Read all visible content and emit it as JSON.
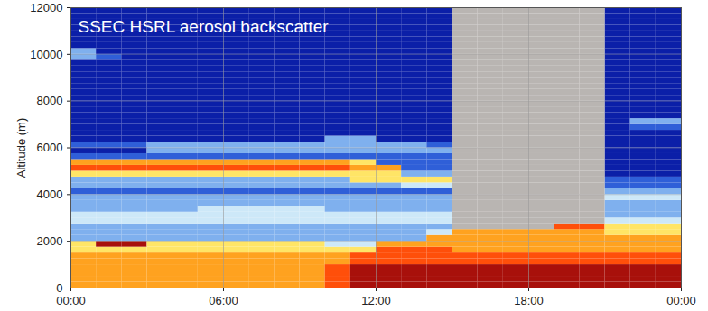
{
  "chart_data": {
    "type": "heatmap",
    "title": "SSEC HSRL aerosol backscatter",
    "y_label": "Altitude (m)",
    "xlim": [
      0,
      24
    ],
    "ylim": [
      0,
      12000
    ],
    "xticks": [
      {
        "value": 0,
        "label": "00:00"
      },
      {
        "value": 6,
        "label": "06:00"
      },
      {
        "value": 12,
        "label": "12:00"
      },
      {
        "value": 18,
        "label": "18:00"
      },
      {
        "value": 24,
        "label": "00:00"
      }
    ],
    "yticks": [
      0,
      2000,
      4000,
      6000,
      8000,
      10000,
      12000
    ],
    "grid": true,
    "value_range": [
      1,
      8
    ],
    "x_edges": [
      0,
      1,
      2,
      3,
      4,
      5,
      6,
      7,
      8,
      9,
      10,
      11,
      12,
      13,
      14,
      15,
      16,
      17,
      18,
      19,
      20,
      21,
      22,
      23,
      24
    ],
    "y_edges": [
      0,
      250,
      500,
      750,
      1000,
      1250,
      1500,
      1750,
      2000,
      2250,
      2500,
      2750,
      3000,
      3250,
      3500,
      3750,
      4000,
      4250,
      4500,
      4750,
      5000,
      5250,
      5500,
      5750,
      6000,
      6250,
      6500,
      6750,
      7000,
      7250,
      7500,
      7750,
      8000,
      8250,
      8500,
      8750,
      9000,
      9250,
      9500,
      9750,
      10000,
      10250,
      10500,
      10750,
      11000,
      11250,
      11500,
      11750,
      12000
    ],
    "cells": [
      [
        6,
        6,
        6,
        6,
        6,
        6,
        6,
        6,
        6,
        6,
        7,
        8,
        8,
        8,
        8,
        8,
        8,
        8,
        8,
        8,
        8,
        8,
        8,
        8
      ],
      [
        6,
        6,
        6,
        6,
        6,
        6,
        6,
        6,
        6,
        6,
        7,
        8,
        8,
        8,
        8,
        8,
        8,
        8,
        8,
        8,
        8,
        8,
        8,
        8
      ],
      [
        6,
        6,
        6,
        6,
        6,
        6,
        6,
        6,
        6,
        6,
        7,
        8,
        8,
        8,
        8,
        8,
        8,
        8,
        8,
        8,
        8,
        8,
        8,
        8
      ],
      [
        6,
        6,
        6,
        6,
        6,
        6,
        6,
        6,
        6,
        6,
        7,
        8,
        8,
        8,
        8,
        8,
        8,
        8,
        8,
        8,
        8,
        8,
        8,
        8
      ],
      [
        6,
        6,
        6,
        6,
        6,
        6,
        6,
        6,
        6,
        6,
        6,
        7,
        7,
        7,
        7,
        7,
        7,
        7,
        7,
        7,
        7,
        7,
        7,
        7
      ],
      [
        6,
        6,
        6,
        6,
        6,
        6,
        6,
        6,
        6,
        6,
        6,
        7,
        7,
        7,
        7,
        7,
        7,
        7,
        7,
        7,
        7,
        7,
        7,
        7
      ],
      [
        5,
        5,
        5,
        5,
        5,
        5,
        5,
        5,
        5,
        5,
        5,
        5,
        7,
        7,
        7,
        6,
        6,
        6,
        6,
        6,
        6,
        6,
        6,
        6
      ],
      [
        5,
        8,
        8,
        5,
        5,
        5,
        5,
        5,
        5,
        5,
        4,
        4,
        6,
        6,
        6,
        6,
        6,
        6,
        6,
        6,
        6,
        6,
        6,
        6
      ],
      [
        3,
        3,
        3,
        3,
        3,
        3,
        3,
        3,
        3,
        3,
        3,
        3,
        3,
        3,
        6,
        6,
        6,
        6,
        6,
        6,
        6,
        6,
        6,
        6
      ],
      [
        3,
        3,
        3,
        3,
        3,
        3,
        3,
        3,
        3,
        3,
        3,
        3,
        3,
        3,
        4,
        6,
        6,
        6,
        6,
        6,
        6,
        5,
        5,
        5
      ],
      [
        3,
        3,
        3,
        3,
        3,
        3,
        3,
        3,
        3,
        3,
        3,
        3,
        3,
        3,
        3,
        null,
        null,
        null,
        null,
        7,
        7,
        5,
        5,
        5
      ],
      [
        4,
        4,
        4,
        4,
        4,
        4,
        4,
        4,
        4,
        4,
        4,
        4,
        4,
        4,
        4,
        null,
        null,
        null,
        null,
        null,
        null,
        4,
        4,
        4
      ],
      [
        4,
        4,
        4,
        4,
        4,
        4,
        4,
        4,
        4,
        4,
        4,
        4,
        4,
        4,
        4,
        null,
        null,
        null,
        null,
        null,
        null,
        3,
        3,
        3
      ],
      [
        3,
        3,
        3,
        3,
        3,
        4,
        4,
        4,
        4,
        4,
        3,
        3,
        3,
        3,
        3,
        null,
        null,
        null,
        null,
        null,
        null,
        3,
        3,
        3
      ],
      [
        3,
        3,
        3,
        3,
        3,
        3,
        3,
        3,
        3,
        3,
        3,
        3,
        3,
        3,
        3,
        null,
        null,
        null,
        null,
        null,
        null,
        3,
        3,
        3
      ],
      [
        3,
        3,
        3,
        3,
        3,
        3,
        3,
        3,
        3,
        3,
        3,
        3,
        3,
        3,
        3,
        null,
        null,
        null,
        null,
        null,
        null,
        4,
        4,
        4
      ],
      [
        2,
        2,
        2,
        2,
        2,
        2,
        2,
        2,
        2,
        2,
        2,
        2,
        2,
        2,
        2,
        null,
        null,
        null,
        null,
        null,
        null,
        3,
        3,
        3
      ],
      [
        3,
        3,
        3,
        3,
        3,
        3,
        3,
        3,
        3,
        3,
        3,
        3,
        3,
        4,
        4,
        null,
        null,
        null,
        null,
        null,
        null,
        2,
        2,
        2
      ],
      [
        3,
        3,
        3,
        3,
        3,
        3,
        3,
        3,
        3,
        3,
        3,
        5,
        5,
        5,
        5,
        null,
        null,
        null,
        null,
        null,
        null,
        2,
        2,
        2
      ],
      [
        5,
        5,
        5,
        5,
        5,
        5,
        5,
        5,
        5,
        5,
        5,
        5,
        5,
        3,
        3,
        null,
        null,
        null,
        null,
        null,
        null,
        1,
        1,
        1
      ],
      [
        7,
        7,
        7,
        7,
        7,
        7,
        7,
        7,
        7,
        7,
        7,
        6,
        6,
        2,
        2,
        null,
        null,
        null,
        null,
        null,
        null,
        1,
        1,
        1
      ],
      [
        6,
        6,
        6,
        6,
        6,
        6,
        6,
        6,
        6,
        6,
        6,
        5,
        2,
        2,
        2,
        null,
        null,
        null,
        null,
        null,
        null,
        1,
        1,
        1
      ],
      [
        2,
        2,
        2,
        2,
        2,
        2,
        2,
        2,
        2,
        2,
        2,
        2,
        2,
        2,
        2,
        null,
        null,
        null,
        null,
        null,
        null,
        1,
        1,
        1
      ],
      [
        1,
        1,
        1,
        3,
        3,
        3,
        3,
        3,
        3,
        3,
        3,
        3,
        3,
        3,
        3,
        null,
        null,
        null,
        null,
        null,
        null,
        1,
        1,
        1
      ],
      [
        2,
        2,
        2,
        3,
        3,
        3,
        3,
        3,
        3,
        3,
        3,
        3,
        3,
        3,
        2,
        null,
        null,
        null,
        null,
        null,
        null,
        1,
        1,
        1
      ],
      [
        1,
        1,
        1,
        1,
        1,
        1,
        1,
        1,
        1,
        1,
        3,
        3,
        1,
        1,
        1,
        null,
        null,
        null,
        null,
        null,
        null,
        1,
        1,
        1
      ],
      [
        1,
        1,
        1,
        1,
        1,
        1,
        1,
        1,
        1,
        1,
        1,
        1,
        1,
        1,
        1,
        null,
        null,
        null,
        null,
        null,
        null,
        1,
        1,
        1
      ],
      [
        1,
        1,
        1,
        1,
        1,
        1,
        1,
        1,
        1,
        1,
        1,
        1,
        1,
        1,
        1,
        null,
        null,
        null,
        null,
        null,
        null,
        1,
        2,
        2
      ],
      [
        1,
        1,
        1,
        1,
        1,
        1,
        1,
        1,
        1,
        1,
        1,
        1,
        1,
        1,
        1,
        null,
        null,
        null,
        null,
        null,
        null,
        1,
        3,
        3
      ],
      [
        1,
        1,
        1,
        1,
        1,
        1,
        1,
        1,
        1,
        1,
        1,
        1,
        1,
        1,
        1,
        null,
        null,
        null,
        null,
        null,
        null,
        1,
        1,
        1
      ],
      [
        1,
        1,
        1,
        1,
        1,
        1,
        1,
        1,
        1,
        1,
        1,
        1,
        1,
        1,
        1,
        null,
        null,
        null,
        null,
        null,
        null,
        1,
        1,
        1
      ],
      [
        1,
        1,
        1,
        1,
        1,
        1,
        1,
        1,
        1,
        1,
        1,
        1,
        1,
        1,
        1,
        null,
        null,
        null,
        null,
        null,
        null,
        1,
        1,
        1
      ],
      [
        1,
        1,
        1,
        1,
        1,
        1,
        1,
        1,
        1,
        1,
        1,
        1,
        1,
        1,
        1,
        null,
        null,
        null,
        null,
        null,
        null,
        1,
        1,
        1
      ],
      [
        1,
        1,
        1,
        1,
        1,
        1,
        1,
        1,
        1,
        1,
        1,
        1,
        1,
        1,
        1,
        null,
        null,
        null,
        null,
        null,
        null,
        1,
        1,
        1
      ],
      [
        1,
        1,
        1,
        1,
        1,
        1,
        1,
        1,
        1,
        1,
        1,
        1,
        1,
        1,
        1,
        null,
        null,
        null,
        null,
        null,
        null,
        1,
        1,
        1
      ],
      [
        1,
        1,
        1,
        1,
        1,
        1,
        1,
        1,
        1,
        1,
        1,
        1,
        1,
        1,
        1,
        null,
        null,
        null,
        null,
        null,
        null,
        1,
        1,
        1
      ],
      [
        1,
        1,
        1,
        1,
        1,
        1,
        1,
        1,
        1,
        1,
        1,
        1,
        1,
        1,
        1,
        null,
        null,
        null,
        null,
        null,
        null,
        1,
        1,
        1
      ],
      [
        1,
        1,
        1,
        1,
        1,
        1,
        1,
        1,
        1,
        1,
        1,
        1,
        1,
        1,
        1,
        null,
        null,
        null,
        null,
        null,
        null,
        1,
        1,
        1
      ],
      [
        1,
        1,
        1,
        1,
        1,
        1,
        1,
        1,
        1,
        1,
        1,
        1,
        1,
        1,
        1,
        null,
        null,
        null,
        null,
        null,
        null,
        1,
        1,
        1
      ],
      [
        3,
        2,
        1,
        1,
        1,
        1,
        1,
        1,
        1,
        1,
        1,
        1,
        1,
        1,
        1,
        null,
        null,
        null,
        null,
        null,
        null,
        1,
        1,
        1
      ],
      [
        3,
        1,
        1,
        1,
        1,
        1,
        1,
        1,
        1,
        1,
        1,
        1,
        1,
        1,
        1,
        null,
        null,
        null,
        null,
        null,
        null,
        1,
        1,
        1
      ],
      [
        1,
        1,
        1,
        1,
        1,
        1,
        1,
        1,
        1,
        1,
        1,
        1,
        1,
        1,
        1,
        null,
        null,
        null,
        null,
        null,
        null,
        1,
        1,
        1
      ],
      [
        1,
        1,
        1,
        1,
        1,
        1,
        1,
        1,
        1,
        1,
        1,
        1,
        1,
        1,
        1,
        null,
        null,
        null,
        null,
        null,
        null,
        1,
        1,
        1
      ],
      [
        1,
        1,
        1,
        1,
        1,
        1,
        1,
        1,
        1,
        1,
        1,
        1,
        1,
        1,
        1,
        null,
        null,
        null,
        null,
        null,
        null,
        1,
        1,
        1
      ],
      [
        1,
        1,
        1,
        1,
        1,
        1,
        1,
        1,
        1,
        1,
        1,
        1,
        1,
        1,
        1,
        null,
        null,
        null,
        null,
        null,
        null,
        1,
        1,
        1
      ],
      [
        1,
        1,
        1,
        1,
        1,
        1,
        1,
        1,
        1,
        1,
        1,
        1,
        1,
        1,
        1,
        null,
        null,
        null,
        null,
        null,
        null,
        1,
        1,
        1
      ],
      [
        1,
        1,
        1,
        1,
        1,
        1,
        1,
        1,
        1,
        1,
        1,
        1,
        1,
        1,
        1,
        null,
        null,
        null,
        null,
        null,
        null,
        1,
        1,
        1
      ],
      [
        1,
        1,
        1,
        1,
        1,
        1,
        1,
        1,
        1,
        1,
        1,
        1,
        1,
        1,
        1,
        null,
        null,
        null,
        null,
        null,
        null,
        1,
        1,
        1
      ]
    ]
  }
}
